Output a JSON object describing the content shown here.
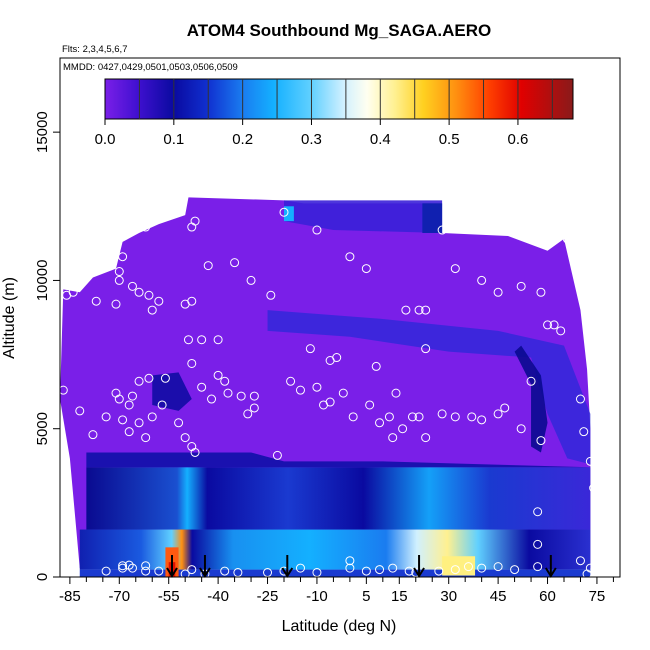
{
  "chart_data": {
    "type": "heatmap",
    "title": "ATOM4 Southbound Mg_SAGA.AERO",
    "flights_label": "Flts: 2,3,4,5,6,7",
    "mmdd_label": "MMDD: 0427,0429,0501,0503,0506,0509",
    "xlabel": "Latitude (deg N)",
    "ylabel": "Altitude (m)",
    "xlim": [
      -88,
      82
    ],
    "ylim": [
      0,
      17500
    ],
    "x_ticks": [
      -85,
      -70,
      -55,
      -40,
      -25,
      -10,
      5,
      15,
      30,
      45,
      60,
      75
    ],
    "x_minor_ticks": [
      -80,
      -75,
      -65,
      -60,
      -50,
      -45,
      -35,
      -30,
      -20,
      -15,
      -5,
      0,
      10,
      20,
      25,
      35,
      40,
      50,
      55,
      65,
      70,
      80
    ],
    "y_ticks": [
      0,
      5000,
      10000,
      15000
    ],
    "colorbar": {
      "range": [
        0,
        0.68
      ],
      "ticks": [
        "0.0",
        "0.1",
        "0.2",
        "0.3",
        "0.4",
        "0.5",
        "0.6"
      ],
      "tick_values": [
        0.0,
        0.1,
        0.2,
        0.3,
        0.4,
        0.5,
        0.6
      ]
    },
    "arrows_lat": [
      -54,
      -44,
      -19,
      21,
      61
    ],
    "sample_points": [
      [
        -86,
        9500
      ],
      [
        -84,
        9600
      ],
      [
        -77,
        9300
      ],
      [
        -71,
        9200
      ],
      [
        -70,
        10000
      ],
      [
        -66,
        9800
      ],
      [
        -64,
        9600
      ],
      [
        -61,
        9500
      ],
      [
        -60,
        9000
      ],
      [
        -58,
        9300
      ],
      [
        -50,
        9200
      ],
      [
        -48,
        9300
      ],
      [
        -43,
        10500
      ],
      [
        -35,
        10600
      ],
      [
        -30,
        10000
      ],
      [
        -24,
        9500
      ],
      [
        -69,
        10800
      ],
      [
        -70,
        10300
      ],
      [
        -62,
        11800
      ],
      [
        -48,
        11800
      ],
      [
        -47,
        12000
      ],
      [
        -20,
        12300
      ],
      [
        -10,
        11700
      ],
      [
        0,
        10800
      ],
      [
        5,
        10400
      ],
      [
        17,
        9000
      ],
      [
        21,
        9000
      ],
      [
        23,
        9000
      ],
      [
        28,
        11700
      ],
      [
        32,
        10400
      ],
      [
        40,
        10000
      ],
      [
        45,
        9600
      ],
      [
        52,
        9800
      ],
      [
        58,
        9600
      ],
      [
        66,
        11400
      ],
      [
        60,
        8500
      ],
      [
        62,
        8500
      ],
      [
        64,
        8300
      ],
      [
        -49,
        8000
      ],
      [
        -45,
        8000
      ],
      [
        -40,
        8000
      ],
      [
        -12,
        7700
      ],
      [
        -6,
        7300
      ],
      [
        -4,
        7400
      ],
      [
        8,
        7100
      ],
      [
        23,
        7700
      ],
      [
        -18,
        6600
      ],
      [
        -48,
        7200
      ],
      [
        -64,
        6600
      ],
      [
        -61,
        6700
      ],
      [
        -56,
        6700
      ],
      [
        -66,
        6100
      ],
      [
        -67,
        5800
      ],
      [
        -70,
        6000
      ],
      [
        -71,
        6200
      ],
      [
        -45,
        6400
      ],
      [
        -42,
        6000
      ],
      [
        -37,
        6200
      ],
      [
        -33,
        6100
      ],
      [
        -40,
        6800
      ],
      [
        -38,
        6600
      ],
      [
        -29,
        5700
      ],
      [
        -31,
        5500
      ],
      [
        -15,
        6300
      ],
      [
        -10,
        6400
      ],
      [
        -6,
        5900
      ],
      [
        -2,
        6200
      ],
      [
        6,
        5800
      ],
      [
        12,
        5400
      ],
      [
        14,
        6200
      ],
      [
        21,
        5400
      ],
      [
        19,
        5400
      ],
      [
        23,
        4700
      ],
      [
        28,
        5500
      ],
      [
        32,
        5400
      ],
      [
        37,
        5400
      ],
      [
        40,
        5300
      ],
      [
        45,
        5500
      ],
      [
        47,
        5700
      ],
      [
        52,
        5000
      ],
      [
        55,
        6600
      ],
      [
        58,
        4600
      ],
      [
        70,
        6000
      ],
      [
        71,
        4900
      ],
      [
        73,
        3900
      ],
      [
        74,
        3000
      ],
      [
        -87,
        6300
      ],
      [
        -82,
        5600
      ],
      [
        -78,
        4800
      ],
      [
        -74,
        5400
      ],
      [
        -69,
        5300
      ],
      [
        -67,
        4900
      ],
      [
        -64,
        5200
      ],
      [
        -62,
        4700
      ],
      [
        -60,
        5400
      ],
      [
        -57,
        5800
      ],
      [
        -52,
        5200
      ],
      [
        -50,
        4700
      ],
      [
        -48,
        4400
      ],
      [
        -47,
        4200
      ],
      [
        -22,
        4100
      ],
      [
        -29,
        6100
      ],
      [
        16,
        5000
      ],
      [
        13,
        4700
      ],
      [
        9,
        5200
      ],
      [
        1,
        5400
      ],
      [
        -8,
        5800
      ],
      [
        57,
        2200
      ],
      [
        57,
        1100
      ],
      [
        -74,
        200
      ],
      [
        -69,
        300
      ],
      [
        -67,
        400
      ],
      [
        -66,
        300
      ],
      [
        -62,
        200
      ],
      [
        -58,
        200
      ],
      [
        -50,
        100
      ],
      [
        -48,
        250
      ],
      [
        -44,
        100
      ],
      [
        -38,
        200
      ],
      [
        -34,
        150
      ],
      [
        -25,
        150
      ],
      [
        -20,
        200
      ],
      [
        -15,
        300
      ],
      [
        -10,
        150
      ],
      [
        0,
        300
      ],
      [
        0,
        550
      ],
      [
        5,
        200
      ],
      [
        9,
        250
      ],
      [
        13,
        300
      ],
      [
        18,
        200
      ],
      [
        20,
        150
      ],
      [
        27,
        200
      ],
      [
        32,
        250
      ],
      [
        36,
        350
      ],
      [
        40,
        300
      ],
      [
        45,
        350
      ],
      [
        50,
        250
      ],
      [
        57,
        350
      ],
      [
        70,
        550
      ],
      [
        72,
        100
      ],
      [
        73,
        300
      ],
      [
        -69,
        380
      ],
      [
        -62,
        380
      ]
    ]
  }
}
